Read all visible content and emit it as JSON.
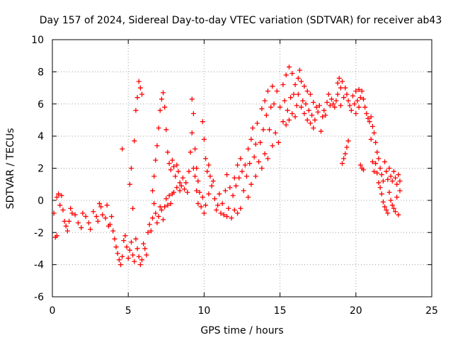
{
  "chart_data": {
    "type": "scatter",
    "title": "Day 157 of 2024, Sidereal Day-to-day VTEC variation (SDTVAR) for receiver ab43",
    "xlabel": "GPS time / hours",
    "ylabel": "SDTVAR / TECUs",
    "xlim": [
      0,
      25
    ],
    "ylim": [
      -6,
      10
    ],
    "xticks": [
      0,
      5,
      10,
      15,
      20,
      25
    ],
    "yticks": [
      -6,
      -4,
      -2,
      0,
      2,
      4,
      6,
      8,
      10
    ],
    "grid": true,
    "marker": "+",
    "series": [
      {
        "name": "SDTVAR",
        "color": "#ff0000",
        "points": [
          [
            0.1,
            -0.8
          ],
          [
            0.2,
            -2.3
          ],
          [
            0.3,
            -2.2
          ],
          [
            0.3,
            0.2
          ],
          [
            0.4,
            0.4
          ],
          [
            0.5,
            -0.3
          ],
          [
            0.6,
            0.3
          ],
          [
            0.7,
            -0.6
          ],
          [
            0.8,
            -1.3
          ],
          [
            0.9,
            -1.6
          ],
          [
            1.0,
            -1.9
          ],
          [
            1.1,
            -1.3
          ],
          [
            1.2,
            -0.5
          ],
          [
            1.3,
            -0.8
          ],
          [
            1.5,
            -0.9
          ],
          [
            1.7,
            -1.4
          ],
          [
            1.9,
            -1.7
          ],
          [
            2.0,
            -0.8
          ],
          [
            2.2,
            -1.0
          ],
          [
            2.4,
            -1.4
          ],
          [
            2.5,
            -1.8
          ],
          [
            2.7,
            -0.7
          ],
          [
            2.9,
            -1.0
          ],
          [
            3.0,
            -1.3
          ],
          [
            3.1,
            -0.2
          ],
          [
            3.2,
            -0.4
          ],
          [
            3.3,
            -0.9
          ],
          [
            3.5,
            -1.1
          ],
          [
            3.6,
            -0.3
          ],
          [
            3.7,
            -1.6
          ],
          [
            3.8,
            -1.5
          ],
          [
            3.9,
            -1.0
          ],
          [
            4.0,
            -1.9
          ],
          [
            4.1,
            -2.4
          ],
          [
            4.2,
            -2.9
          ],
          [
            4.3,
            -3.3
          ],
          [
            4.4,
            -3.7
          ],
          [
            4.5,
            -4.0
          ],
          [
            4.6,
            -3.5
          ],
          [
            4.6,
            3.2
          ],
          [
            4.7,
            -2.5
          ],
          [
            4.8,
            -2.2
          ],
          [
            4.9,
            -2.9
          ],
          [
            5.0,
            -3.6
          ],
          [
            5.1,
            -3.1
          ],
          [
            5.1,
            1.0
          ],
          [
            5.2,
            -2.6
          ],
          [
            5.2,
            2.0
          ],
          [
            5.3,
            -3.4
          ],
          [
            5.3,
            -0.5
          ],
          [
            5.4,
            -3.8
          ],
          [
            5.4,
            3.7
          ],
          [
            5.5,
            5.6
          ],
          [
            5.5,
            -2.4
          ],
          [
            5.6,
            6.4
          ],
          [
            5.6,
            -3.0
          ],
          [
            5.7,
            7.4
          ],
          [
            5.7,
            -3.5
          ],
          [
            5.8,
            7.0
          ],
          [
            5.8,
            -4.0
          ],
          [
            5.9,
            6.6
          ],
          [
            5.9,
            -3.7
          ],
          [
            6.0,
            -2.7
          ],
          [
            6.1,
            -3.0
          ],
          [
            6.2,
            -3.4
          ],
          [
            6.3,
            -2.0
          ],
          [
            6.4,
            -1.5
          ],
          [
            6.5,
            -1.9
          ],
          [
            6.6,
            -1.1
          ],
          [
            6.6,
            0.6
          ],
          [
            6.7,
            -0.2
          ],
          [
            6.7,
            1.5
          ],
          [
            6.8,
            -0.8
          ],
          [
            6.8,
            2.5
          ],
          [
            6.9,
            3.4
          ],
          [
            6.9,
            -1.4
          ],
          [
            7.0,
            4.5
          ],
          [
            7.0,
            -1.0
          ],
          [
            7.1,
            5.6
          ],
          [
            7.1,
            -0.4
          ],
          [
            7.2,
            6.3
          ],
          [
            7.2,
            -0.6
          ],
          [
            7.3,
            6.7
          ],
          [
            7.3,
            -1.2
          ],
          [
            7.4,
            5.8
          ],
          [
            7.4,
            -0.4
          ],
          [
            7.5,
            4.4
          ],
          [
            7.5,
            0.1
          ],
          [
            7.6,
            3.0
          ],
          [
            7.6,
            -0.3
          ],
          [
            7.7,
            2.3
          ],
          [
            7.7,
            0.3
          ],
          [
            7.8,
            1.9
          ],
          [
            7.8,
            -0.2
          ],
          [
            7.9,
            2.5
          ],
          [
            7.9,
            0.4
          ],
          [
            8.0,
            2.1
          ],
          [
            8.0,
            0.5
          ],
          [
            8.1,
            1.5
          ],
          [
            8.2,
            2.2
          ],
          [
            8.2,
            0.8
          ],
          [
            8.3,
            1.8
          ],
          [
            8.4,
            1.1
          ],
          [
            8.4,
            0.6
          ],
          [
            8.5,
            0.9
          ],
          [
            8.6,
            1.4
          ],
          [
            8.7,
            0.7
          ],
          [
            8.8,
            1.1
          ],
          [
            8.9,
            0.5
          ],
          [
            9.0,
            1.8
          ],
          [
            9.1,
            3.0
          ],
          [
            9.2,
            6.3
          ],
          [
            9.2,
            4.2
          ],
          [
            9.3,
            5.4
          ],
          [
            9.3,
            2.0
          ],
          [
            9.4,
            3.2
          ],
          [
            9.4,
            1.5
          ],
          [
            9.5,
            2.0
          ],
          [
            9.5,
            0.6
          ],
          [
            9.6,
            1.2
          ],
          [
            9.6,
            -0.2
          ],
          [
            9.7,
            0.5
          ],
          [
            9.8,
            -0.4
          ],
          [
            9.9,
            0.2
          ],
          [
            9.9,
            4.9
          ],
          [
            10.0,
            3.8
          ],
          [
            10.0,
            -0.8
          ],
          [
            10.1,
            2.6
          ],
          [
            10.1,
            -0.3
          ],
          [
            10.2,
            1.8
          ],
          [
            10.3,
            2.2
          ],
          [
            10.3,
            0.4
          ],
          [
            10.4,
            1.5
          ],
          [
            10.5,
            0.9
          ],
          [
            10.6,
            1.2
          ],
          [
            10.7,
            0.1
          ],
          [
            10.8,
            -0.6
          ],
          [
            10.9,
            -0.3
          ],
          [
            11.0,
            0.4
          ],
          [
            11.1,
            -0.8
          ],
          [
            11.2,
            -0.2
          ],
          [
            11.3,
            -0.9
          ],
          [
            11.4,
            0.6
          ],
          [
            11.5,
            1.6
          ],
          [
            11.5,
            -1.0
          ],
          [
            11.6,
            -0.5
          ],
          [
            11.7,
            0.8
          ],
          [
            11.8,
            -1.1
          ],
          [
            11.9,
            0.3
          ],
          [
            12.0,
            1.4
          ],
          [
            12.0,
            -0.6
          ],
          [
            12.1,
            0.9
          ],
          [
            12.2,
            2.2
          ],
          [
            12.2,
            -0.8
          ],
          [
            12.3,
            1.4
          ],
          [
            12.4,
            2.6
          ],
          [
            12.4,
            -0.5
          ],
          [
            12.5,
            1.8
          ],
          [
            12.6,
            0.6
          ],
          [
            12.7,
            2.2
          ],
          [
            12.8,
            1.5
          ],
          [
            12.9,
            3.2
          ],
          [
            12.9,
            0.2
          ],
          [
            13.0,
            2.3
          ],
          [
            13.1,
            3.8
          ],
          [
            13.1,
            1.0
          ],
          [
            13.2,
            4.5
          ],
          [
            13.3,
            2.7
          ],
          [
            13.4,
            3.5
          ],
          [
            13.4,
            1.5
          ],
          [
            13.5,
            4.8
          ],
          [
            13.6,
            2.4
          ],
          [
            13.7,
            3.6
          ],
          [
            13.8,
            5.7
          ],
          [
            13.8,
            2.0
          ],
          [
            13.9,
            4.4
          ],
          [
            14.0,
            6.2
          ],
          [
            14.0,
            2.9
          ],
          [
            14.1,
            5.3
          ],
          [
            14.2,
            6.8
          ],
          [
            14.2,
            2.6
          ],
          [
            14.3,
            4.4
          ],
          [
            14.4,
            5.8
          ],
          [
            14.5,
            7.1
          ],
          [
            14.5,
            3.4
          ],
          [
            14.6,
            6.0
          ],
          [
            14.7,
            4.2
          ],
          [
            14.8,
            6.8
          ],
          [
            14.9,
            3.6
          ],
          [
            15.0,
            5.8
          ],
          [
            15.2,
            7.2
          ],
          [
            15.2,
            4.9
          ],
          [
            15.3,
            6.2
          ],
          [
            15.4,
            7.8
          ],
          [
            15.4,
            4.7
          ],
          [
            15.5,
            5.6
          ],
          [
            15.6,
            8.3
          ],
          [
            15.6,
            5.0
          ],
          [
            15.7,
            6.4
          ],
          [
            15.8,
            7.9
          ],
          [
            15.8,
            5.4
          ],
          [
            15.9,
            6.6
          ],
          [
            16.0,
            7.2
          ],
          [
            16.0,
            5.2
          ],
          [
            16.1,
            5.9
          ],
          [
            16.2,
            7.6
          ],
          [
            16.2,
            6.6
          ],
          [
            16.3,
            8.1
          ],
          [
            16.4,
            7.4
          ],
          [
            16.4,
            5.8
          ],
          [
            16.5,
            6.2
          ],
          [
            16.6,
            7.1
          ],
          [
            16.6,
            5.4
          ],
          [
            16.7,
            6.0
          ],
          [
            16.8,
            6.8
          ],
          [
            16.8,
            5.0
          ],
          [
            16.9,
            5.6
          ],
          [
            17.0,
            6.6
          ],
          [
            17.0,
            4.8
          ],
          [
            17.1,
            5.3
          ],
          [
            17.2,
            6.1
          ],
          [
            17.2,
            4.5
          ],
          [
            17.3,
            5.0
          ],
          [
            17.4,
            5.8
          ],
          [
            17.5,
            5.5
          ],
          [
            17.6,
            5.9
          ],
          [
            17.7,
            4.3
          ],
          [
            17.8,
            5.2
          ],
          [
            17.9,
            5.6
          ],
          [
            18.0,
            5.3
          ],
          [
            18.1,
            6.1
          ],
          [
            18.2,
            6.6
          ],
          [
            18.3,
            5.9
          ],
          [
            18.4,
            6.3
          ],
          [
            18.5,
            6.0
          ],
          [
            18.6,
            5.8
          ],
          [
            18.7,
            6.2
          ],
          [
            18.8,
            7.3
          ],
          [
            18.8,
            6.6
          ],
          [
            18.9,
            7.6
          ],
          [
            19.0,
            7.0
          ],
          [
            19.0,
            5.9
          ],
          [
            19.1,
            7.4
          ],
          [
            19.1,
            2.3
          ],
          [
            19.2,
            6.4
          ],
          [
            19.2,
            2.6
          ],
          [
            19.3,
            7.0
          ],
          [
            19.3,
            2.9
          ],
          [
            19.4,
            6.6
          ],
          [
            19.4,
            3.3
          ],
          [
            19.5,
            6.2
          ],
          [
            19.5,
            3.7
          ],
          [
            19.6,
            5.9
          ],
          [
            19.7,
            5.6
          ],
          [
            19.8,
            6.5
          ],
          [
            19.9,
            6.0
          ],
          [
            20.0,
            5.4
          ],
          [
            20.0,
            6.8
          ],
          [
            20.1,
            6.2
          ],
          [
            20.2,
            5.8
          ],
          [
            20.2,
            6.9
          ],
          [
            20.3,
            6.4
          ],
          [
            20.3,
            2.2
          ],
          [
            20.4,
            6.8
          ],
          [
            20.4,
            2.0
          ],
          [
            20.5,
            6.3
          ],
          [
            20.5,
            1.9
          ],
          [
            20.6,
            5.8
          ],
          [
            20.7,
            5.4
          ],
          [
            20.8,
            5.1
          ],
          [
            20.9,
            4.9
          ],
          [
            21.0,
            5.2
          ],
          [
            21.0,
            3.8
          ],
          [
            21.1,
            4.6
          ],
          [
            21.1,
            2.4
          ],
          [
            21.2,
            4.2
          ],
          [
            21.2,
            1.8
          ],
          [
            21.3,
            3.6
          ],
          [
            21.3,
            2.3
          ],
          [
            21.4,
            3.0
          ],
          [
            21.4,
            1.7
          ],
          [
            21.5,
            2.6
          ],
          [
            21.5,
            1.1
          ],
          [
            21.6,
            2.0
          ],
          [
            21.6,
            0.8
          ],
          [
            21.7,
            1.6
          ],
          [
            21.7,
            0.4
          ],
          [
            21.8,
            1.2
          ],
          [
            21.8,
            -0.1
          ],
          [
            21.9,
            2.4
          ],
          [
            21.9,
            -0.4
          ],
          [
            22.0,
            1.8
          ],
          [
            22.0,
            -0.6
          ],
          [
            22.1,
            1.3
          ],
          [
            22.1,
            -0.8
          ],
          [
            22.2,
            2.0
          ],
          [
            22.2,
            0.5
          ],
          [
            22.3,
            1.5
          ],
          [
            22.3,
            0.0
          ],
          [
            22.4,
            1.2
          ],
          [
            22.4,
            -0.3
          ],
          [
            22.5,
            1.8
          ],
          [
            22.5,
            -0.5
          ],
          [
            22.6,
            1.4
          ],
          [
            22.6,
            -0.7
          ],
          [
            22.7,
            1.0
          ],
          [
            22.7,
            0.2
          ],
          [
            22.8,
            1.6
          ],
          [
            22.8,
            -0.9
          ],
          [
            22.9,
            1.2
          ],
          [
            22.9,
            0.6
          ]
        ]
      }
    ]
  }
}
